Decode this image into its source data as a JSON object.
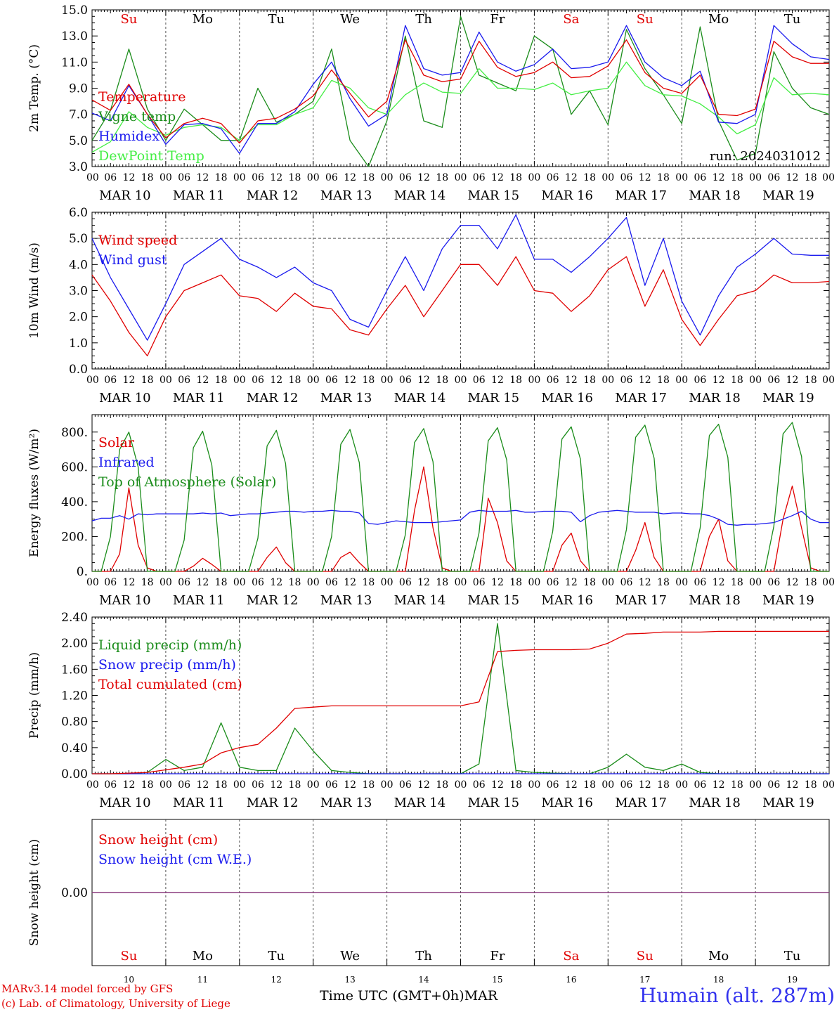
{
  "colors": {
    "red": "#e00000",
    "green": "#1a8c1a",
    "blue": "#1a1aee",
    "light_green": "#44ee44",
    "purple": "#7a3a8a",
    "grid": "#555555"
  },
  "days": [
    "Su",
    "Mo",
    "Tu",
    "We",
    "Th",
    "Fr",
    "Sa",
    "Su",
    "Mo",
    "Tu"
  ],
  "weekend_flags": [
    true,
    false,
    false,
    false,
    false,
    false,
    true,
    true,
    false,
    false
  ],
  "date_labels": [
    "MAR 10",
    "MAR 11",
    "MAR 12",
    "MAR 13",
    "MAR 14",
    "MAR 15",
    "MAR 16",
    "MAR 17",
    "MAR 18",
    "MAR 19"
  ],
  "day_numbers": [
    "10",
    "11",
    "12",
    "13",
    "14",
    "15",
    "16",
    "17",
    "18",
    "19"
  ],
  "hour_labels": [
    "00",
    "06",
    "12",
    "18"
  ],
  "footer": {
    "model": "MARv3.14 model forced by GFS",
    "copyright": "(c) Lab. of Climatology, University of Liege",
    "xaxis_title": "Time UTC (GMT+0h)",
    "month": "MAR",
    "location": "Humain (alt. 287m)"
  },
  "chart_data": [
    {
      "type": "line",
      "ylabel": "2m Temp. (°C)",
      "ylim": [
        3.0,
        15.0
      ],
      "yticks": [
        "3.0",
        "5.0",
        "7.0",
        "9.0",
        "11.0",
        "13.0",
        "15.0"
      ],
      "annotation": "run: 2024031012",
      "x": [
        0,
        6,
        12,
        18,
        24,
        30,
        36,
        42,
        48,
        54,
        60,
        66,
        72,
        78,
        84,
        90,
        96,
        102,
        108,
        114,
        120,
        126,
        132,
        138,
        144,
        150,
        156,
        162,
        168,
        174,
        180,
        186,
        192,
        198,
        204,
        210,
        216,
        222,
        228,
        234,
        240
      ],
      "series": [
        {
          "name": "Temperature",
          "color": "red",
          "values": [
            8.1,
            7.3,
            9.3,
            7.0,
            5.2,
            6.3,
            6.7,
            6.3,
            4.8,
            6.5,
            6.7,
            7.4,
            8.4,
            10.4,
            8.6,
            6.8,
            8.0,
            12.7,
            10.0,
            9.5,
            9.7,
            12.6,
            10.6,
            9.9,
            10.2,
            11.0,
            9.8,
            9.9,
            10.7,
            12.7,
            10.2,
            9.0,
            8.6,
            10.0,
            7.0,
            6.9,
            7.4,
            12.6,
            11.4,
            10.9,
            10.9
          ]
        },
        {
          "name": "Vigne temp",
          "color": "green",
          "values": [
            5.0,
            7.3,
            12.0,
            7.4,
            5.0,
            7.4,
            6.2,
            5.0,
            5.0,
            9.0,
            6.4,
            7.0,
            8.0,
            12.0,
            5.0,
            3.0,
            6.5,
            13.0,
            6.5,
            6.0,
            14.5,
            10.0,
            9.4,
            8.8,
            13.0,
            12.0,
            7.0,
            8.8,
            6.2,
            13.5,
            10.5,
            8.5,
            6.3,
            13.7,
            6.5,
            3.5,
            4.0,
            11.8,
            9.0,
            7.5,
            7.0
          ]
        },
        {
          "name": "Humidex",
          "color": "blue",
          "values": [
            7.1,
            6.5,
            9.2,
            7.0,
            4.7,
            6.2,
            6.3,
            5.9,
            4.0,
            6.3,
            6.3,
            7.2,
            9.3,
            11.0,
            8.2,
            6.1,
            7.0,
            13.8,
            10.5,
            10.0,
            10.2,
            13.3,
            11.0,
            10.3,
            10.8,
            12.0,
            10.5,
            10.6,
            11.0,
            13.8,
            11.0,
            9.8,
            9.2,
            10.3,
            6.4,
            6.3,
            7.0,
            13.8,
            12.4,
            11.4,
            11.2
          ]
        },
        {
          "name": "DewPoint Temp",
          "color": "light_green",
          "values": [
            4.1,
            4.9,
            7.2,
            6.0,
            5.4,
            6.0,
            6.2,
            6.0,
            5.0,
            6.2,
            6.2,
            7.0,
            7.5,
            9.6,
            9.0,
            7.5,
            7.0,
            8.5,
            9.4,
            8.7,
            8.6,
            10.5,
            9.0,
            9.0,
            8.9,
            9.4,
            8.5,
            8.8,
            9.0,
            11.0,
            9.2,
            8.5,
            8.4,
            7.8,
            6.8,
            5.5,
            6.2,
            9.8,
            8.5,
            8.6,
            8.5
          ]
        }
      ]
    },
    {
      "type": "line",
      "ylabel": "10m Wind (m/s)",
      "ylim": [
        0.0,
        6.0
      ],
      "yticks": [
        "0.0",
        "1.0",
        "2.0",
        "3.0",
        "4.0",
        "5.0",
        "6.0"
      ],
      "ref_line": 5.0,
      "x": [
        0,
        6,
        12,
        18,
        24,
        30,
        36,
        42,
        48,
        54,
        60,
        66,
        72,
        78,
        84,
        90,
        96,
        102,
        108,
        114,
        120,
        126,
        132,
        138,
        144,
        150,
        156,
        162,
        168,
        174,
        180,
        186,
        192,
        198,
        204,
        210,
        216,
        222,
        228,
        234,
        240
      ],
      "series": [
        {
          "name": "Wind speed",
          "color": "red",
          "values": [
            3.6,
            2.6,
            1.4,
            0.5,
            2.0,
            3.0,
            3.3,
            3.6,
            2.8,
            2.7,
            2.2,
            2.9,
            2.4,
            2.3,
            1.5,
            1.3,
            2.3,
            3.2,
            2.0,
            3.0,
            4.0,
            4.0,
            3.2,
            4.3,
            3.0,
            2.9,
            2.2,
            2.8,
            3.8,
            4.3,
            2.4,
            3.8,
            1.9,
            0.9,
            1.9,
            2.8,
            3.0,
            3.6,
            3.3,
            3.3,
            3.35
          ]
        },
        {
          "name": "Wind gust",
          "color": "blue",
          "values": [
            5.0,
            3.5,
            2.3,
            1.1,
            2.5,
            4.0,
            4.5,
            5.0,
            4.2,
            3.9,
            3.5,
            3.9,
            3.3,
            3.0,
            1.9,
            1.6,
            3.0,
            4.3,
            3.0,
            4.6,
            5.5,
            5.5,
            4.6,
            5.9,
            4.2,
            4.2,
            3.7,
            4.3,
            5.0,
            5.8,
            3.2,
            5.0,
            2.6,
            1.3,
            2.8,
            3.9,
            4.4,
            5.0,
            4.4,
            4.35,
            4.35
          ]
        }
      ]
    },
    {
      "type": "line",
      "ylabel": "Energy fluxes (W/m²)",
      "ylim": [
        0,
        900
      ],
      "yticks": [
        "0.",
        "200.",
        "400.",
        "600.",
        "800."
      ],
      "x": [
        0,
        3,
        6,
        9,
        12,
        15,
        18,
        21,
        24,
        27,
        30,
        33,
        36,
        39,
        42,
        45,
        48,
        51,
        54,
        57,
        60,
        63,
        66,
        69,
        72,
        75,
        78,
        81,
        84,
        87,
        90,
        93,
        96,
        99,
        102,
        105,
        108,
        111,
        114,
        117,
        120,
        123,
        126,
        129,
        132,
        135,
        138,
        141,
        144,
        147,
        150,
        153,
        156,
        159,
        162,
        165,
        168,
        171,
        174,
        177,
        180,
        183,
        186,
        189,
        192,
        195,
        198,
        201,
        204,
        207,
        210,
        213,
        216,
        219,
        222,
        225,
        228,
        231,
        234,
        237,
        240
      ],
      "series": [
        {
          "name": "Solar",
          "color": "red",
          "values": [
            0,
            0,
            0,
            100,
            480,
            150,
            20,
            0,
            0,
            0,
            0,
            30,
            75,
            40,
            0,
            0,
            0,
            0,
            0,
            80,
            140,
            50,
            0,
            0,
            0,
            0,
            0,
            80,
            110,
            50,
            0,
            0,
            0,
            0,
            0,
            350,
            600,
            250,
            20,
            0,
            0,
            0,
            0,
            420,
            280,
            60,
            0,
            0,
            0,
            0,
            0,
            150,
            220,
            60,
            0,
            0,
            0,
            0,
            0,
            120,
            280,
            80,
            0,
            0,
            0,
            0,
            0,
            200,
            300,
            60,
            0,
            0,
            0,
            0,
            0,
            300,
            490,
            250,
            20,
            0,
            0
          ]
        },
        {
          "name": "Infrared",
          "color": "blue",
          "values": [
            290,
            305,
            305,
            320,
            300,
            330,
            325,
            330,
            330,
            330,
            330,
            330,
            335,
            330,
            335,
            320,
            325,
            330,
            330,
            335,
            340,
            345,
            345,
            340,
            345,
            345,
            350,
            345,
            345,
            335,
            275,
            270,
            280,
            290,
            285,
            280,
            280,
            280,
            285,
            290,
            295,
            340,
            350,
            345,
            345,
            345,
            350,
            340,
            340,
            345,
            345,
            345,
            340,
            285,
            320,
            340,
            345,
            350,
            345,
            340,
            340,
            340,
            330,
            335,
            335,
            330,
            330,
            320,
            300,
            270,
            265,
            270,
            270,
            275,
            280,
            300,
            320,
            345,
            300,
            280,
            280
          ]
        },
        {
          "name": "Top of Atmosphere (Solar)",
          "color": "green",
          "values": [
            0,
            0,
            200,
            700,
            800,
            600,
            0,
            0,
            0,
            0,
            180,
            710,
            805,
            610,
            0,
            0,
            0,
            0,
            190,
            720,
            810,
            620,
            0,
            0,
            0,
            0,
            200,
            730,
            815,
            625,
            0,
            0,
            0,
            0,
            210,
            740,
            820,
            630,
            0,
            0,
            0,
            0,
            220,
            750,
            825,
            640,
            0,
            0,
            0,
            0,
            230,
            760,
            830,
            645,
            0,
            0,
            0,
            0,
            240,
            770,
            840,
            650,
            0,
            0,
            0,
            0,
            250,
            780,
            845,
            655,
            0,
            0,
            0,
            0,
            260,
            790,
            855,
            660,
            0,
            0,
            0
          ]
        }
      ]
    },
    {
      "type": "line",
      "ylabel": "Precip (mm/h)",
      "ylim": [
        0.0,
        2.4
      ],
      "yticks": [
        "0.00",
        "0.40",
        "0.80",
        "1.20",
        "1.60",
        "2.00",
        "2.40"
      ],
      "x": [
        0,
        6,
        12,
        18,
        24,
        30,
        36,
        42,
        48,
        54,
        60,
        66,
        72,
        78,
        84,
        90,
        96,
        102,
        108,
        114,
        120,
        126,
        132,
        138,
        144,
        150,
        156,
        162,
        168,
        174,
        180,
        186,
        192,
        198,
        204,
        210,
        216,
        222,
        228,
        234,
        240
      ],
      "series": [
        {
          "name": "Liquid precip (mm/h)",
          "color": "green",
          "values": [
            0,
            0,
            0,
            0.02,
            0.22,
            0.05,
            0.1,
            0.78,
            0.1,
            0.05,
            0.05,
            0.7,
            0.35,
            0.05,
            0.02,
            0,
            0,
            0,
            0,
            0,
            0,
            0.15,
            2.3,
            0.05,
            0.02,
            0.01,
            0,
            0,
            0.1,
            0.3,
            0.1,
            0.05,
            0.15,
            0.02,
            0,
            0,
            0,
            0,
            0,
            0,
            0
          ]
        },
        {
          "name": "Snow precip (mm/h)",
          "color": "blue",
          "values": [
            0,
            0,
            0,
            0,
            0,
            0,
            0,
            0,
            0,
            0,
            0,
            0,
            0,
            0,
            0,
            0,
            0,
            0,
            0,
            0,
            0,
            0,
            0,
            0,
            0,
            0,
            0,
            0,
            0,
            0,
            0,
            0,
            0,
            0,
            0,
            0,
            0,
            0,
            0,
            0,
            0
          ]
        },
        {
          "name": "Total cumulated (cm)",
          "color": "red",
          "values": [
            0,
            0,
            0.01,
            0.02,
            0.06,
            0.1,
            0.15,
            0.32,
            0.4,
            0.45,
            0.7,
            1.0,
            1.02,
            1.04,
            1.04,
            1.04,
            1.04,
            1.04,
            1.04,
            1.04,
            1.04,
            1.1,
            1.87,
            1.89,
            1.9,
            1.9,
            1.9,
            1.91,
            2.0,
            2.14,
            2.15,
            2.17,
            2.17,
            2.17,
            2.18,
            2.18,
            2.18,
            2.18,
            2.18,
            2.18,
            2.18
          ]
        }
      ]
    },
    {
      "type": "line",
      "ylabel": "Snow height (cm)",
      "ylim": [
        -1,
        1
      ],
      "yticks": [
        "0.00"
      ],
      "x": [
        0,
        240
      ],
      "series": [
        {
          "name": "Snow height (cm)",
          "color": "red",
          "values": [
            0,
            0
          ]
        },
        {
          "name": "Snow height (cm W.E.)",
          "color": "blue",
          "values": [
            0,
            0
          ]
        }
      ]
    }
  ]
}
